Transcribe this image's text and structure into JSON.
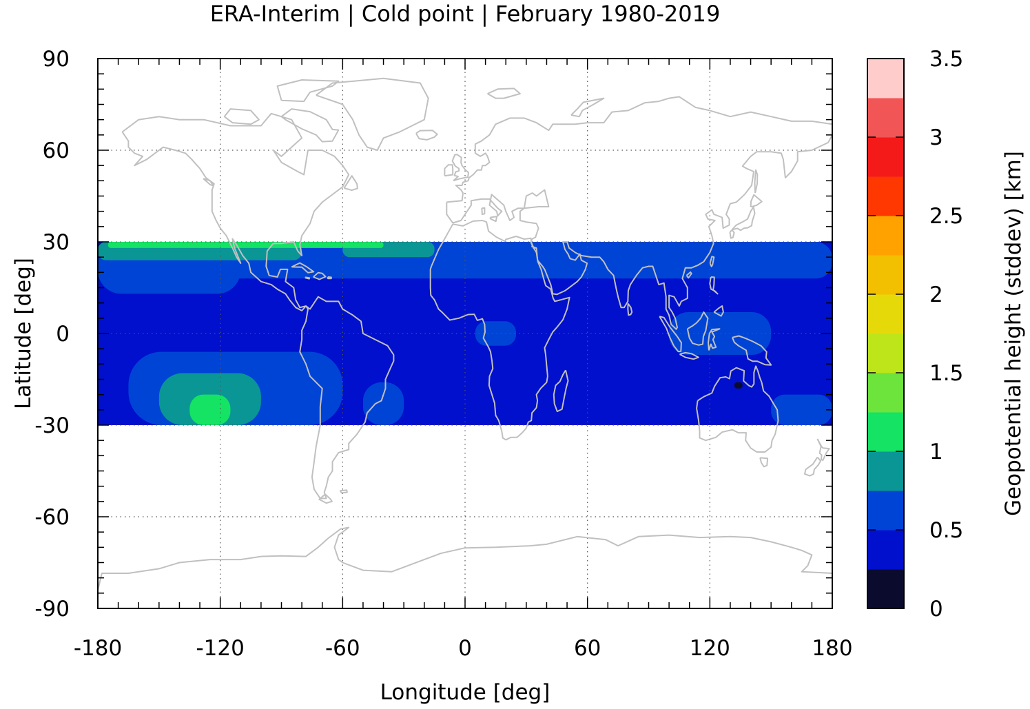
{
  "chart_data": {
    "type": "heatmap",
    "title": "ERA-Interim | Cold point | February 1980-2019",
    "xlabel": "Longitude [deg]",
    "ylabel": "Latitude [deg]",
    "colorbar_label": "Geopotential height (stddev) [km]",
    "xlim": [
      -180,
      180
    ],
    "ylim": [
      -90,
      90
    ],
    "data_lat_range": [
      -30,
      30
    ],
    "x_ticks": [
      -180,
      -120,
      -60,
      0,
      60,
      120,
      180
    ],
    "x_tick_labels": [
      "-180",
      "-120",
      "-60",
      "0",
      "60",
      "120",
      "180"
    ],
    "y_ticks": [
      90,
      60,
      30,
      0,
      -30,
      -60,
      -90
    ],
    "y_tick_labels": [
      "90",
      "60",
      "30",
      "0",
      "-30",
      "-60",
      "-90"
    ],
    "grid": true,
    "colorbar": {
      "range": [
        0,
        3.5
      ],
      "tick_values": [
        3.5,
        3,
        2.5,
        2,
        1.5,
        1,
        0.5,
        0
      ],
      "tick_labels": [
        "3.5",
        "3",
        "2.5",
        "2",
        "1.5",
        "1",
        "0.5",
        "0"
      ],
      "levels": [
        {
          "from": 0.0,
          "to": 0.25,
          "color": "#0b0b2e"
        },
        {
          "from": 0.25,
          "to": 0.5,
          "color": "#0010cc"
        },
        {
          "from": 0.5,
          "to": 0.75,
          "color": "#0044d6"
        },
        {
          "from": 0.75,
          "to": 1.0,
          "color": "#0b9696"
        },
        {
          "from": 1.0,
          "to": 1.25,
          "color": "#14e364"
        },
        {
          "from": 1.25,
          "to": 1.5,
          "color": "#6ce43b"
        },
        {
          "from": 1.5,
          "to": 1.75,
          "color": "#bde51a"
        },
        {
          "from": 1.75,
          "to": 2.0,
          "color": "#e6d90a"
        },
        {
          "from": 2.0,
          "to": 2.25,
          "color": "#f2c000"
        },
        {
          "from": 2.25,
          "to": 2.5,
          "color": "#ffa200"
        },
        {
          "from": 2.5,
          "to": 2.75,
          "color": "#ff3700"
        },
        {
          "from": 2.75,
          "to": 3.0,
          "color": "#f51a1a"
        },
        {
          "from": 3.0,
          "to": 3.25,
          "color": "#f25555"
        },
        {
          "from": 3.25,
          "to": 3.5,
          "color": "#ffcccc"
        }
      ]
    },
    "field_regions": [
      {
        "name": "background",
        "value": 0.3,
        "lon": [
          -180,
          180
        ],
        "lat": [
          -30,
          30
        ]
      },
      {
        "name": "subtropical-north-band",
        "value": 0.6,
        "lon": [
          -180,
          180
        ],
        "lat": [
          18,
          30
        ]
      },
      {
        "name": "east-pacific-north",
        "value": 0.6,
        "lon": [
          -180,
          -110
        ],
        "lat": [
          13,
          30
        ]
      },
      {
        "name": "north-pacific-teal",
        "value": 0.85,
        "lon": [
          -180,
          -80
        ],
        "lat": [
          24,
          30
        ]
      },
      {
        "name": "north-atlantic-teal",
        "value": 0.85,
        "lon": [
          -60,
          -15
        ],
        "lat": [
          25,
          30
        ]
      },
      {
        "name": "north-green-patches",
        "value": 1.1,
        "lon": [
          -175,
          -40
        ],
        "lat": [
          28,
          30
        ]
      },
      {
        "name": "central-africa",
        "value": 0.6,
        "lon": [
          5,
          25
        ],
        "lat": [
          -4,
          4
        ]
      },
      {
        "name": "maritime-continent",
        "value": 0.6,
        "lon": [
          100,
          150
        ],
        "lat": [
          -7,
          7
        ]
      },
      {
        "name": "south-pacific-blue",
        "value": 0.6,
        "lon": [
          -165,
          -60
        ],
        "lat": [
          -30,
          -6
        ]
      },
      {
        "name": "south-pacific-teal",
        "value": 0.85,
        "lon": [
          -150,
          -100
        ],
        "lat": [
          -30,
          -13
        ]
      },
      {
        "name": "south-pacific-green",
        "value": 1.1,
        "lon": [
          -135,
          -115
        ],
        "lat": [
          -30,
          -20
        ]
      },
      {
        "name": "south-atlantic-blue",
        "value": 0.6,
        "lon": [
          -50,
          -30
        ],
        "lat": [
          -30,
          -16
        ]
      },
      {
        "name": "south-west-pacific-blue",
        "value": 0.6,
        "lon": [
          150,
          180
        ],
        "lat": [
          -30,
          -20
        ]
      },
      {
        "name": "australia-min",
        "value": 0.1,
        "lon": [
          132,
          136
        ],
        "lat": [
          -18,
          -16
        ]
      }
    ]
  }
}
